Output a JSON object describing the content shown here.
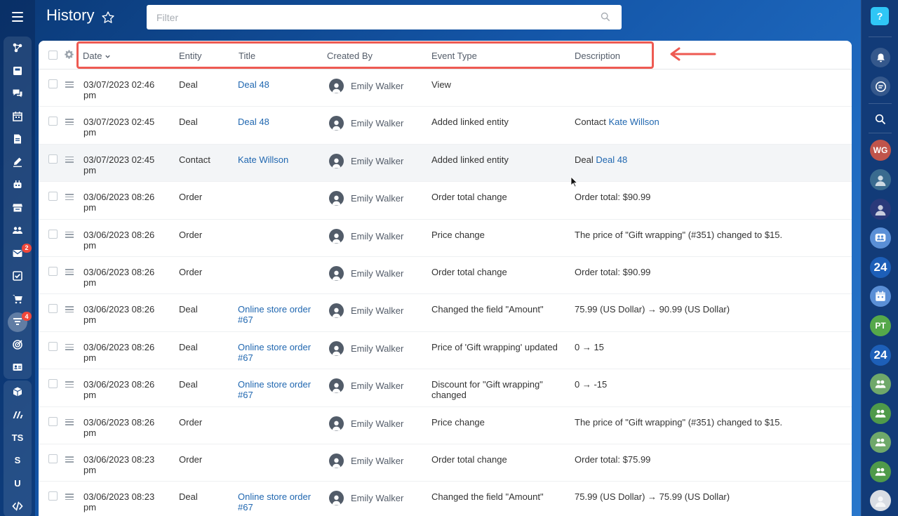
{
  "header": {
    "title": "History",
    "filter_placeholder": "Filter"
  },
  "left_sidebar": {
    "items": [
      {
        "icon": "network-icon"
      },
      {
        "icon": "inbox-icon"
      },
      {
        "icon": "chat-icon"
      },
      {
        "icon": "calendar-icon"
      },
      {
        "icon": "document-icon"
      },
      {
        "icon": "signature-icon"
      },
      {
        "icon": "robot-icon"
      },
      {
        "icon": "store-icon"
      },
      {
        "icon": "users-icon"
      },
      {
        "icon": "mail-icon",
        "badge": "2"
      },
      {
        "icon": "task-check-icon"
      },
      {
        "icon": "cart-icon"
      },
      {
        "icon": "funnel-icon",
        "badge": "4"
      },
      {
        "icon": "target-icon"
      },
      {
        "icon": "contact-card-icon"
      },
      {
        "icon": "box-icon"
      },
      {
        "icon": "brand-m-icon"
      },
      {
        "label": "TS"
      },
      {
        "label": "S"
      },
      {
        "label": "U"
      },
      {
        "icon": "code-icon"
      }
    ]
  },
  "table": {
    "columns": {
      "date": "Date",
      "entity": "Entity",
      "title": "Title",
      "created_by": "Created By",
      "event_type": "Event Type",
      "description": "Description"
    },
    "rows": [
      {
        "date": "03/07/2023 02:46 pm",
        "entity": "Deal",
        "title": "Deal 48",
        "user": "Emily Walker",
        "event": "View",
        "desc_prefix": "",
        "desc_link": ""
      },
      {
        "date": "03/07/2023 02:45 pm",
        "entity": "Deal",
        "title": "Deal 48",
        "user": "Emily Walker",
        "event": "Added linked entity",
        "desc_prefix": "Contact",
        "desc_link": "Kate Willson"
      },
      {
        "date": "03/07/2023 02:45 pm",
        "entity": "Contact",
        "title": "Kate Willson",
        "user": "Emily Walker",
        "event": "Added linked entity",
        "desc_prefix": "Deal",
        "desc_link": "Deal 48"
      },
      {
        "date": "03/06/2023 08:26 pm",
        "entity": "Order",
        "title": "",
        "user": "Emily Walker",
        "event": "Order total change",
        "desc_prefix": "Order total: $90.99",
        "desc_link": ""
      },
      {
        "date": "03/06/2023 08:26 pm",
        "entity": "Order",
        "title": "",
        "user": "Emily Walker",
        "event": "Price change",
        "desc_prefix": "The price of \"Gift wrapping\" (#351) changed to $15.",
        "desc_link": ""
      },
      {
        "date": "03/06/2023 08:26 pm",
        "entity": "Order",
        "title": "",
        "user": "Emily Walker",
        "event": "Order total change",
        "desc_prefix": "Order total: $90.99",
        "desc_link": ""
      },
      {
        "date": "03/06/2023 08:26 pm",
        "entity": "Deal",
        "title": "Online store order #67",
        "user": "Emily Walker",
        "event": "Changed the field \"Amount\"",
        "desc_prefix": "75.99 (US Dollar) → 90.99 (US Dollar)",
        "desc_link": ""
      },
      {
        "date": "03/06/2023 08:26 pm",
        "entity": "Deal",
        "title": "Online store order #67",
        "user": "Emily Walker",
        "event": "Price of 'Gift wrapping' updated",
        "desc_prefix": "0 → 15",
        "desc_link": ""
      },
      {
        "date": "03/06/2023 08:26 pm",
        "entity": "Deal",
        "title": "Online store order #67",
        "user": "Emily Walker",
        "event": "Discount for \"Gift wrapping\" changed",
        "desc_prefix": "0 → -15",
        "desc_link": ""
      },
      {
        "date": "03/06/2023 08:26 pm",
        "entity": "Order",
        "title": "",
        "user": "Emily Walker",
        "event": "Price change",
        "desc_prefix": "The price of \"Gift wrapping\" (#351) changed to $15.",
        "desc_link": ""
      },
      {
        "date": "03/06/2023 08:23 pm",
        "entity": "Order",
        "title": "",
        "user": "Emily Walker",
        "event": "Order total change",
        "desc_prefix": "Order total: $75.99",
        "desc_link": ""
      },
      {
        "date": "03/06/2023 08:23 pm",
        "entity": "Deal",
        "title": "Online store order #67",
        "user": "Emily Walker",
        "event": "Changed the field \"Amount\"",
        "desc_prefix": "75.99 (US Dollar) → 75.99 (US Dollar)",
        "desc_link": ""
      }
    ]
  },
  "right_sidebar": {
    "help_label": "?",
    "avatars": [
      {
        "initials": "WG",
        "color": "#c0544b"
      },
      {
        "initials": "",
        "color": "#3a6b8f"
      },
      {
        "initials": "",
        "color": "#2a3a7a"
      },
      {
        "initials": "",
        "color": "#5a8fd6",
        "icon": "group-chat-icon"
      },
      {
        "initials": "24",
        "color": "#1d5fb8"
      },
      {
        "initials": "",
        "color": "#5a8fd6",
        "icon": "calendar-chat-icon"
      },
      {
        "initials": "PT",
        "color": "#55a84a"
      },
      {
        "initials": "24",
        "color": "#1d5fb8"
      },
      {
        "initials": "",
        "color": "#6fa86a",
        "icon": "group-icon"
      },
      {
        "initials": "",
        "color": "#4f9a4a",
        "icon": "group-icon"
      },
      {
        "initials": "",
        "color": "#6fa86a",
        "icon": "group-icon"
      },
      {
        "initials": "",
        "color": "#4f9a4a",
        "icon": "group-icon"
      },
      {
        "initials": "",
        "color": "#d9dde3"
      }
    ]
  },
  "colors": {
    "link": "#2067b0",
    "highlight_red": "#ee5a52",
    "badge_red": "#f0473a",
    "help_cyan": "#2fc6f6"
  }
}
